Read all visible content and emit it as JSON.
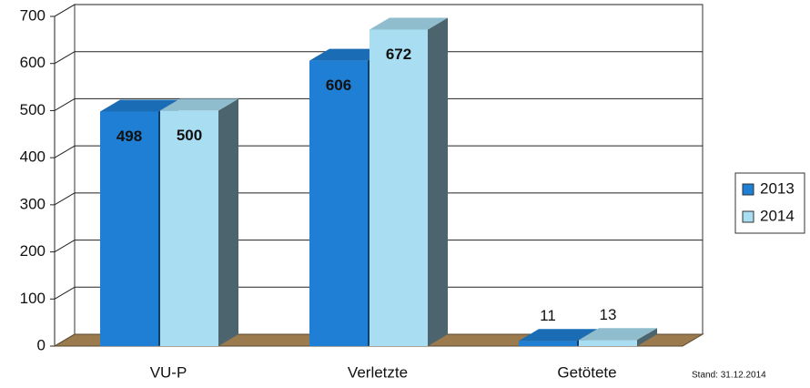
{
  "chart_data": {
    "type": "bar3d",
    "categories": [
      "VU-P",
      "Verletzte",
      "Getötete"
    ],
    "series": [
      {
        "name": "2013",
        "color": "#1e7fd4",
        "values": [
          498,
          606,
          11
        ]
      },
      {
        "name": "2014",
        "color": "#a9def2",
        "values": [
          500,
          672,
          13
        ]
      }
    ],
    "ylim": [
      0,
      700
    ],
    "yticks": [
      0,
      100,
      200,
      300,
      400,
      500,
      600,
      700
    ],
    "grid": true,
    "legend": "right",
    "annotation": "Stand: 31.12.2014"
  }
}
